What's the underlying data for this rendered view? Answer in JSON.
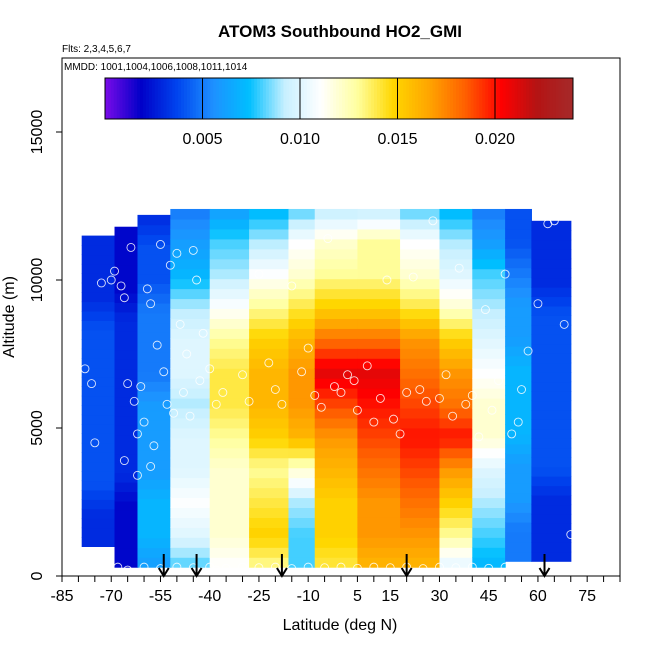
{
  "chart_data": {
    "type": "heatmap",
    "title": "ATOM3 Southbound HO2_GMI",
    "flights_note": "Flts: 2,3,4,5,6,7",
    "mmdd_note": "MMDD: 1001,1004,1006,1008,1011,1014",
    "xlabel": "Latitude (deg N)",
    "ylabel": "Altitude (m)",
    "xlim": [
      -85,
      85
    ],
    "ylim": [
      0,
      17500
    ],
    "x_tick_labels": [
      -85,
      -70,
      -55,
      -40,
      -25,
      -10,
      5,
      15,
      30,
      45,
      60,
      75
    ],
    "x_minor_ticks_step": 5,
    "y_tick_labels": [
      0,
      5000,
      10000,
      15000
    ],
    "colorbar": {
      "min": 0.0,
      "max": 0.024,
      "tick_labels": [
        "0.005",
        "0.010",
        "0.015",
        "0.020"
      ],
      "tick_values": [
        0.005,
        0.01,
        0.015,
        0.02
      ],
      "colors": [
        "#7a0be8",
        "#0000c8",
        "#0044ee",
        "#1e90ff",
        "#00bfff",
        "#c8f0ff",
        "#ffffff",
        "#ffffa0",
        "#ffd700",
        "#ffa500",
        "#ff6000",
        "#ff0000",
        "#b41414",
        "#a52a2a"
      ]
    },
    "flight_arrow_latitudes": [
      -54,
      -44,
      -18,
      20,
      62
    ],
    "profiles": [
      {
        "lat_min": -79,
        "lat_max": -69,
        "alt_min": 1000,
        "alt_max": 11500,
        "values": [
          0.003,
          0.003,
          0.004,
          0.004,
          0.004,
          0.004,
          0.004,
          0.004,
          0.003,
          0.003,
          0.003
        ]
      },
      {
        "lat_min": -69,
        "lat_max": -62,
        "alt_min": 300,
        "alt_max": 11800,
        "values": [
          0.002,
          0.002,
          0.002,
          0.003,
          0.003,
          0.003,
          0.003,
          0.003,
          0.003,
          0.002,
          0.002,
          0.002
        ]
      },
      {
        "lat_min": -62,
        "lat_max": -52,
        "alt_min": 300,
        "alt_max": 12200,
        "values": [
          0.006,
          0.007,
          0.007,
          0.006,
          0.006,
          0.006,
          0.005,
          0.005,
          0.005,
          0.004,
          0.004,
          0.003
        ]
      },
      {
        "lat_min": -52,
        "lat_max": -40,
        "alt_min": 300,
        "alt_max": 12400,
        "values": [
          0.008,
          0.01,
          0.011,
          0.01,
          0.01,
          0.009,
          0.01,
          0.01,
          0.009,
          0.007,
          0.006,
          0.005
        ]
      },
      {
        "lat_min": -40,
        "lat_max": -28,
        "alt_min": 300,
        "alt_max": 12400,
        "values": [
          0.011,
          0.012,
          0.012,
          0.012,
          0.013,
          0.014,
          0.014,
          0.013,
          0.011,
          0.009,
          0.008,
          0.006
        ]
      },
      {
        "lat_min": -28,
        "lat_max": -16,
        "alt_min": 300,
        "alt_max": 12400,
        "values": [
          0.013,
          0.015,
          0.014,
          0.013,
          0.015,
          0.016,
          0.016,
          0.015,
          0.013,
          0.011,
          0.009,
          0.007
        ]
      },
      {
        "lat_min": -16,
        "lat_max": -8,
        "alt_min": 300,
        "alt_max": 12400,
        "values": [
          0.008,
          0.008,
          0.009,
          0.012,
          0.016,
          0.017,
          0.017,
          0.016,
          0.014,
          0.012,
          0.011,
          0.008
        ]
      },
      {
        "lat_min": -8,
        "lat_max": 5,
        "alt_min": 300,
        "alt_max": 12400,
        "values": [
          0.014,
          0.015,
          0.015,
          0.016,
          0.017,
          0.019,
          0.021,
          0.018,
          0.015,
          0.013,
          0.012,
          0.009
        ]
      },
      {
        "lat_min": 5,
        "lat_max": 18,
        "alt_min": 300,
        "alt_max": 12400,
        "values": [
          0.016,
          0.017,
          0.017,
          0.018,
          0.019,
          0.02,
          0.021,
          0.018,
          0.015,
          0.013,
          0.013,
          0.009
        ]
      },
      {
        "lat_min": 18,
        "lat_max": 30,
        "alt_min": 300,
        "alt_max": 12400,
        "values": [
          0.016,
          0.017,
          0.018,
          0.019,
          0.02,
          0.019,
          0.018,
          0.017,
          0.014,
          0.012,
          0.011,
          0.008
        ]
      },
      {
        "lat_min": 30,
        "lat_max": 40,
        "alt_min": 300,
        "alt_max": 12400,
        "values": [
          0.01,
          0.013,
          0.015,
          0.017,
          0.02,
          0.018,
          0.017,
          0.015,
          0.012,
          0.01,
          0.009,
          0.007
        ]
      },
      {
        "lat_min": 40,
        "lat_max": 50,
        "alt_min": 300,
        "alt_max": 12400,
        "values": [
          0.007,
          0.008,
          0.009,
          0.01,
          0.012,
          0.012,
          0.011,
          0.01,
          0.009,
          0.008,
          0.006,
          0.005
        ]
      },
      {
        "lat_min": 50,
        "lat_max": 58,
        "alt_min": 500,
        "alt_max": 12400,
        "values": [
          0.005,
          0.005,
          0.006,
          0.006,
          0.007,
          0.007,
          0.007,
          0.006,
          0.006,
          0.005,
          0.004,
          0.004
        ]
      },
      {
        "lat_min": 58,
        "lat_max": 70,
        "alt_min": 500,
        "alt_max": 12000,
        "values": [
          0.003,
          0.003,
          0.003,
          0.004,
          0.004,
          0.004,
          0.004,
          0.004,
          0.004,
          0.003,
          0.003,
          0.003
        ]
      }
    ],
    "sample_points": [
      [
        -82,
        9800
      ],
      [
        -78,
        7000
      ],
      [
        -76,
        6500
      ],
      [
        -75,
        4500
      ],
      [
        -73,
        9900
      ],
      [
        -70,
        10000
      ],
      [
        -69,
        10300
      ],
      [
        -67,
        9800
      ],
      [
        -66,
        9400
      ],
      [
        -65,
        6500
      ],
      [
        -64,
        11100
      ],
      [
        -63,
        5900
      ],
      [
        -62,
        4800
      ],
      [
        -61,
        6400
      ],
      [
        -60,
        5200
      ],
      [
        -59,
        9700
      ],
      [
        -58,
        9200
      ],
      [
        -57,
        4400
      ],
      [
        -56,
        7800
      ],
      [
        -55,
        11200
      ],
      [
        -54,
        6900
      ],
      [
        -53,
        5800
      ],
      [
        -52,
        10500
      ],
      [
        -51,
        5500
      ],
      [
        -50,
        10900
      ],
      [
        -49,
        8500
      ],
      [
        -48,
        6200
      ],
      [
        -47,
        7500
      ],
      [
        -46,
        5400
      ],
      [
        -45,
        11000
      ],
      [
        -44,
        10000
      ],
      [
        -43,
        6600
      ],
      [
        -42,
        8200
      ],
      [
        -40,
        7000
      ],
      [
        -38,
        5800
      ],
      [
        -36,
        6200
      ],
      [
        -30,
        6800
      ],
      [
        -28,
        5900
      ],
      [
        -25,
        10200
      ],
      [
        -22,
        7200
      ],
      [
        -20,
        6300
      ],
      [
        -18,
        5800
      ],
      [
        -15,
        9800
      ],
      [
        -12,
        6900
      ],
      [
        -10,
        7700
      ],
      [
        -8,
        6100
      ],
      [
        -6,
        5700
      ],
      [
        -4,
        11400
      ],
      [
        -2,
        6400
      ],
      [
        0,
        6200
      ],
      [
        2,
        6800
      ],
      [
        4,
        6600
      ],
      [
        5,
        5600
      ],
      [
        8,
        7100
      ],
      [
        10,
        5200
      ],
      [
        12,
        6000
      ],
      [
        14,
        10000
      ],
      [
        16,
        5300
      ],
      [
        18,
        4800
      ],
      [
        20,
        6200
      ],
      [
        22,
        10100
      ],
      [
        24,
        6300
      ],
      [
        26,
        5900
      ],
      [
        28,
        12000
      ],
      [
        30,
        6000
      ],
      [
        32,
        6800
      ],
      [
        34,
        5400
      ],
      [
        36,
        10400
      ],
      [
        38,
        5800
      ],
      [
        40,
        6100
      ],
      [
        42,
        4700
      ],
      [
        44,
        9000
      ],
      [
        46,
        5600
      ],
      [
        48,
        6600
      ],
      [
        50,
        10200
      ],
      [
        52,
        4800
      ],
      [
        54,
        5200
      ],
      [
        55,
        6300
      ],
      [
        57,
        7600
      ],
      [
        60,
        9200
      ],
      [
        63,
        11900
      ],
      [
        65,
        12000
      ],
      [
        68,
        8500
      ],
      [
        70,
        1400
      ],
      [
        -68,
        300
      ],
      [
        -65,
        200
      ],
      [
        -60,
        300
      ],
      [
        -55,
        250
      ],
      [
        -50,
        300
      ],
      [
        -45,
        280
      ],
      [
        -40,
        300
      ],
      [
        -35,
        260
      ],
      [
        -30,
        300
      ],
      [
        -25,
        280
      ],
      [
        -20,
        300
      ],
      [
        -15,
        250
      ],
      [
        -10,
        300
      ],
      [
        -5,
        280
      ],
      [
        0,
        300
      ],
      [
        5,
        260
      ],
      [
        10,
        300
      ],
      [
        15,
        280
      ],
      [
        20,
        300
      ],
      [
        25,
        250
      ],
      [
        30,
        300
      ],
      [
        35,
        280
      ],
      [
        40,
        300
      ],
      [
        45,
        260
      ],
      [
        50,
        300
      ],
      [
        -38,
        200
      ],
      [
        -58,
        3700
      ],
      [
        -62,
        3400
      ],
      [
        -66,
        3900
      ]
    ]
  }
}
